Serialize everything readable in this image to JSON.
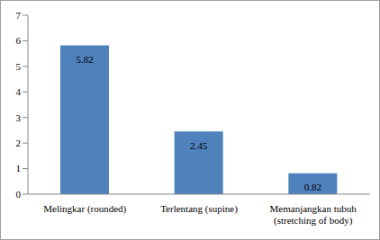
{
  "chart_data": {
    "type": "bar",
    "categories": [
      "Melingkar (rounded)",
      "Terlentang (supine)",
      "Memanjangkan tubuh (stretching of body)"
    ],
    "values": [
      5.82,
      2.45,
      0.82
    ],
    "color": "#4f81bd",
    "ylim": [
      0,
      7
    ],
    "yticks": [
      0,
      1,
      2,
      3,
      4,
      5,
      6,
      7
    ],
    "grid": false,
    "data_labels": true
  }
}
